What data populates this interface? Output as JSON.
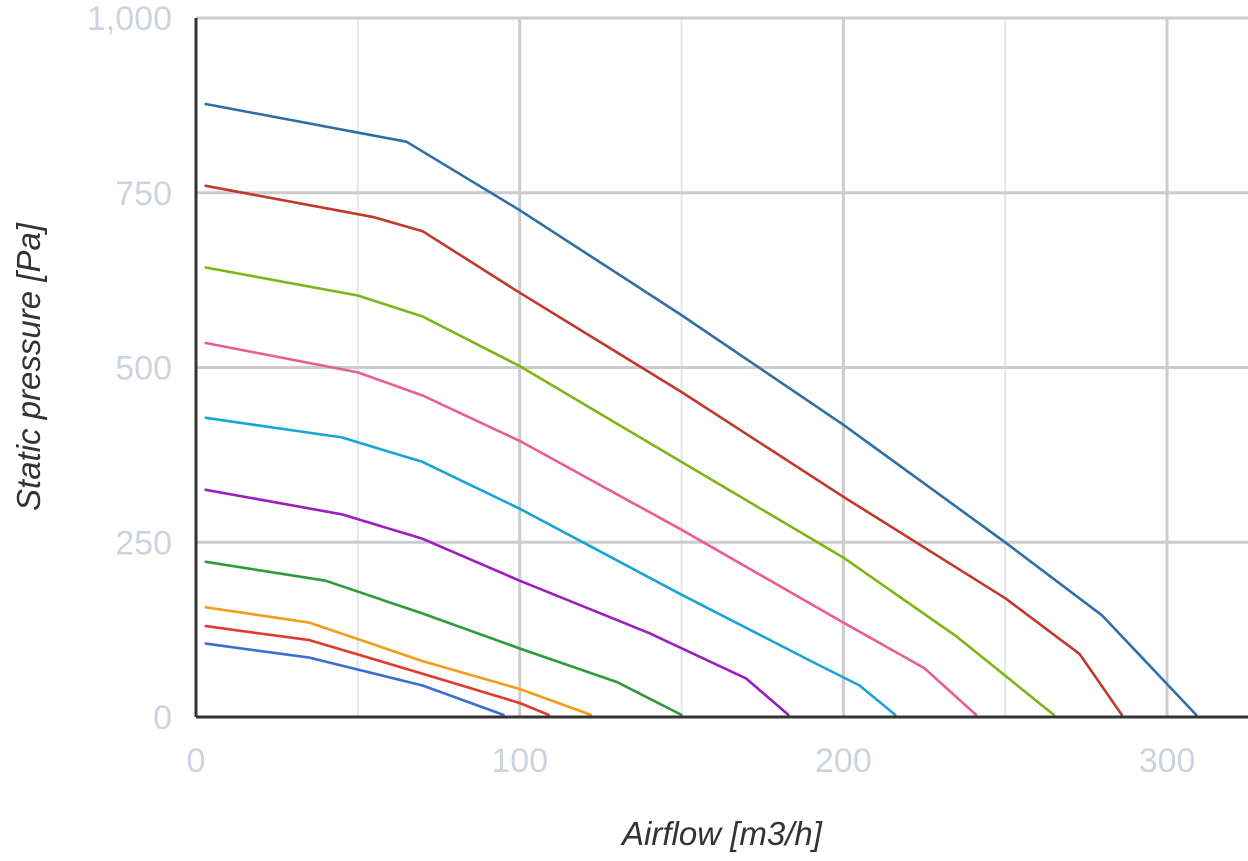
{
  "chart_data": {
    "type": "line",
    "title": "",
    "xlabel": "Airflow [m3/h]",
    "ylabel": "Static pressure [Pa]",
    "xlim": [
      0,
      325
    ],
    "ylim": [
      0,
      1000
    ],
    "x_ticks": [
      0,
      100,
      200,
      300
    ],
    "x_tick_labels": [
      "0",
      "100",
      "200",
      "300"
    ],
    "y_ticks": [
      0,
      250,
      500,
      750,
      1000
    ],
    "y_tick_labels": [
      "0",
      "250",
      "500",
      "750",
      "1,000"
    ],
    "grid": true,
    "legend": "none",
    "series": [
      {
        "color": "#2e6fa8",
        "points": [
          [
            3,
            877
          ],
          [
            65,
            823
          ],
          [
            100,
            725
          ],
          [
            150,
            575
          ],
          [
            200,
            418
          ],
          [
            250,
            250
          ],
          [
            280,
            145
          ],
          [
            309,
            3
          ]
        ]
      },
      {
        "color": "#c0392b",
        "points": [
          [
            3,
            760
          ],
          [
            55,
            715
          ],
          [
            70,
            695
          ],
          [
            100,
            607
          ],
          [
            150,
            465
          ],
          [
            200,
            315
          ],
          [
            250,
            170
          ],
          [
            273,
            90
          ],
          [
            286,
            3
          ]
        ]
      },
      {
        "color": "#7cb518",
        "points": [
          [
            3,
            643
          ],
          [
            50,
            603
          ],
          [
            70,
            573
          ],
          [
            100,
            502
          ],
          [
            150,
            365
          ],
          [
            200,
            228
          ],
          [
            235,
            115
          ],
          [
            265,
            3
          ]
        ]
      },
      {
        "color": "#e85d93",
        "points": [
          [
            3,
            535
          ],
          [
            50,
            493
          ],
          [
            70,
            460
          ],
          [
            100,
            395
          ],
          [
            150,
            268
          ],
          [
            200,
            135
          ],
          [
            225,
            70
          ],
          [
            241,
            3
          ]
        ]
      },
      {
        "color": "#1aa3d6",
        "points": [
          [
            3,
            428
          ],
          [
            45,
            400
          ],
          [
            70,
            365
          ],
          [
            100,
            298
          ],
          [
            150,
            175
          ],
          [
            190,
            80
          ],
          [
            205,
            45
          ],
          [
            216,
            3
          ]
        ]
      },
      {
        "color": "#9b1fbf",
        "points": [
          [
            3,
            325
          ],
          [
            45,
            290
          ],
          [
            70,
            255
          ],
          [
            100,
            195
          ],
          [
            140,
            120
          ],
          [
            170,
            55
          ],
          [
            183,
            3
          ]
        ]
      },
      {
        "color": "#2c9c3a",
        "points": [
          [
            3,
            222
          ],
          [
            40,
            195
          ],
          [
            70,
            148
          ],
          [
            100,
            98
          ],
          [
            130,
            50
          ],
          [
            150,
            3
          ]
        ]
      },
      {
        "color": "#f59b1a",
        "points": [
          [
            3,
            157
          ],
          [
            35,
            135
          ],
          [
            70,
            80
          ],
          [
            100,
            40
          ],
          [
            122,
            3
          ]
        ]
      },
      {
        "color": "#e03a2f",
        "points": [
          [
            3,
            130
          ],
          [
            35,
            110
          ],
          [
            70,
            62
          ],
          [
            100,
            20
          ],
          [
            109,
            3
          ]
        ]
      },
      {
        "color": "#3a6fcf",
        "points": [
          [
            3,
            105
          ],
          [
            35,
            85
          ],
          [
            70,
            45
          ],
          [
            95,
            3
          ]
        ]
      }
    ]
  }
}
